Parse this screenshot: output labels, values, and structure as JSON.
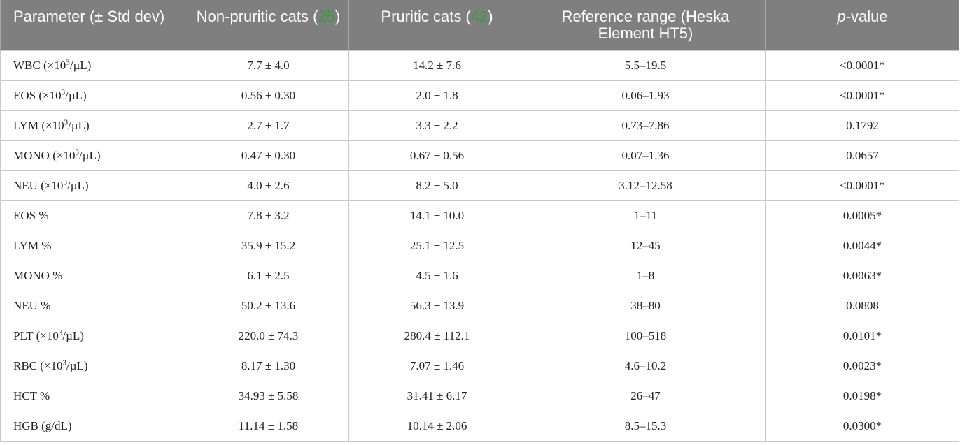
{
  "header": {
    "col1": "Parameter (± Std dev)",
    "col2_text": "Non-pruritic cats (",
    "col2_count": "25",
    "col2_close": ")",
    "col3_text": "Pruritic cats (",
    "col3_count": "42",
    "col3_close": ")",
    "col4": "Reference range (Heska Element HT5)",
    "col5_italic": "p",
    "col5_rest": "-value"
  },
  "rows": [
    {
      "param_pre": "WBC (×10",
      "param_sup": "3",
      "param_post": "/µL)",
      "non_pruritic": "7.7 ± 4.0",
      "pruritic": "14.2 ± 7.6",
      "reference": "5.5–19.5",
      "p_value": "<0.0001*"
    },
    {
      "param_pre": "EOS (×10",
      "param_sup": "3",
      "param_post": "/µL)",
      "non_pruritic": "0.56 ± 0.30",
      "pruritic": "2.0 ± 1.8",
      "reference": "0.06–1.93",
      "p_value": "<0.0001*"
    },
    {
      "param_pre": "LYM (×10",
      "param_sup": "3",
      "param_post": "/µL)",
      "non_pruritic": "2.7 ± 1.7",
      "pruritic": "3.3 ± 2.2",
      "reference": "0.73–7.86",
      "p_value": "0.1792"
    },
    {
      "param_pre": "MONO (×10",
      "param_sup": "3",
      "param_post": "/µL)",
      "non_pruritic": "0.47 ± 0.30",
      "pruritic": "0.67 ± 0.56",
      "reference": "0.07–1.36",
      "p_value": "0.0657"
    },
    {
      "param_pre": "NEU (×10",
      "param_sup": "3",
      "param_post": "/µL)",
      "non_pruritic": "4.0 ± 2.6",
      "pruritic": "8.2 ± 5.0",
      "reference": "3.12–12.58",
      "p_value": "<0.0001*"
    },
    {
      "param_pre": "EOS %",
      "param_sup": "",
      "param_post": "",
      "non_pruritic": "7.8 ± 3.2",
      "pruritic": "14.1 ± 10.0",
      "reference": "1–11",
      "p_value": "0.0005*"
    },
    {
      "param_pre": "LYM %",
      "param_sup": "",
      "param_post": "",
      "non_pruritic": "35.9 ± 15.2",
      "pruritic": "25.1 ± 12.5",
      "reference": "12–45",
      "p_value": "0.0044*"
    },
    {
      "param_pre": "MONO %",
      "param_sup": "",
      "param_post": "",
      "non_pruritic": "6.1 ± 2.5",
      "pruritic": "4.5 ± 1.6",
      "reference": "1–8",
      "p_value": "0.0063*"
    },
    {
      "param_pre": "NEU %",
      "param_sup": "",
      "param_post": "",
      "non_pruritic": "50.2 ± 13.6",
      "pruritic": "56.3 ± 13.9",
      "reference": "38–80",
      "p_value": "0.0808"
    },
    {
      "param_pre": "PLT (×10",
      "param_sup": "3",
      "param_post": "/µL)",
      "non_pruritic": "220.0 ± 74.3",
      "pruritic": "280.4 ± 112.1",
      "reference": "100–518",
      "p_value": "0.0101*"
    },
    {
      "param_pre": "RBC (×10",
      "param_sup": "3",
      "param_post": "/µL)",
      "non_pruritic": "8.17 ± 1.30",
      "pruritic": "7.07 ± 1.46",
      "reference": "4.6–10.2",
      "p_value": "0.0023*"
    },
    {
      "param_pre": "HCT %",
      "param_sup": "",
      "param_post": "",
      "non_pruritic": "34.93 ± 5.58",
      "pruritic": "31.41 ± 6.17",
      "reference": "26–47",
      "p_value": "0.0198*"
    },
    {
      "param_pre": "HGB (g/dL)",
      "param_sup": "",
      "param_post": "",
      "non_pruritic": "11.14 ± 1.58",
      "pruritic": "10.14 ± 2.06",
      "reference": "8.5–15.3",
      "p_value": "0.0300*"
    }
  ],
  "colors": {
    "header_bg": "#7f7f7f",
    "header_text": "#ffffff",
    "count_text": "#3c9a3c",
    "border": "#c9c9c9"
  }
}
